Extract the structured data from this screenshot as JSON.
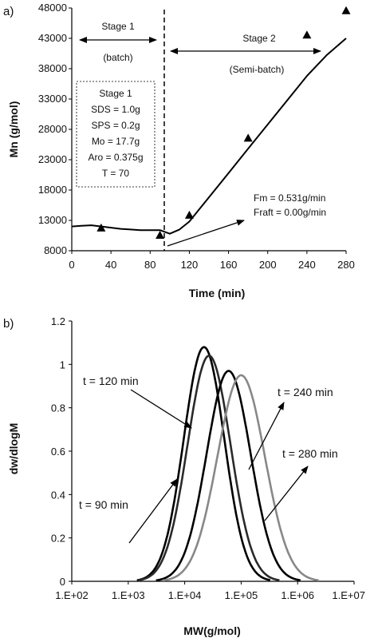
{
  "chart_data": [
    {
      "panel": "a)",
      "type": "line",
      "xlabel": "Time (min)",
      "ylabel": "Mn (g/mol)",
      "xlim": [
        0,
        280
      ],
      "ylim": [
        8000,
        48000
      ],
      "x_ticks": [
        "0",
        "40",
        "80",
        "120",
        "160",
        "200",
        "240",
        "280"
      ],
      "y_ticks": [
        "8000",
        "13000",
        "18000",
        "23000",
        "28000",
        "33000",
        "38000",
        "43000",
        "48000"
      ],
      "series": [
        {
          "style": "line",
          "x": [
            0,
            10,
            20,
            30,
            40,
            50,
            60,
            70,
            80,
            90,
            100,
            110,
            120,
            130,
            140,
            160,
            180,
            200,
            220,
            240,
            260,
            280
          ],
          "y": [
            12000,
            12100,
            12200,
            12000,
            11800,
            11600,
            11500,
            11400,
            11400,
            11400,
            10800,
            11500,
            12800,
            14800,
            16800,
            20800,
            24800,
            28800,
            32800,
            36800,
            40200,
            43000
          ]
        },
        {
          "style": "markers",
          "marker": "triangle",
          "x": [
            30,
            90,
            120,
            180,
            240,
            280
          ],
          "y": [
            11700,
            10500,
            13800,
            26500,
            43500,
            47500
          ]
        }
      ],
      "stage_divider_x": 90,
      "annotations": {
        "stage1_title": "Stage 1",
        "stage1_mode": "(batch)",
        "stage2_title": "Stage 2",
        "stage2_mode": "(Semi-batch)",
        "recipe_title": "Stage 1",
        "recipe_lines": [
          "SDS = 1.0g",
          "SPS = 0.2g",
          "Mo = 17.7g",
          "Aro = 0.375g",
          "T = 70"
        ],
        "feed_lines": [
          "Fm = 0.531g/min",
          "Fraft = 0.00g/min"
        ]
      }
    },
    {
      "panel": "b)",
      "type": "line",
      "xlabel": "MW(g/mol)",
      "ylabel": "dw/dlogM",
      "x_scale": "log",
      "xlim": [
        100,
        10000000
      ],
      "ylim": [
        0,
        1.2
      ],
      "x_ticks": [
        "1.E+02",
        "1.E+03",
        "1.E+04",
        "1.E+05",
        "1.E+06",
        "1.E+07"
      ],
      "y_ticks": [
        "0",
        "0.2",
        "0.4",
        "0.6",
        "0.8",
        "1",
        "1.2"
      ],
      "series": [
        {
          "label": "t = 90 min",
          "peak_mw": 22000,
          "peak": 1.08,
          "sigma": 0.36,
          "color": "#000000"
        },
        {
          "label": "t = 120 min",
          "peak_mw": 27000,
          "peak": 1.04,
          "sigma": 0.38,
          "color": "#2a2a2a"
        },
        {
          "label": "t = 240 min",
          "peak_mw": 60000,
          "peak": 0.97,
          "sigma": 0.39,
          "color": "#000000"
        },
        {
          "label": "t = 280 min",
          "peak_mw": 100000,
          "peak": 0.95,
          "sigma": 0.42,
          "color": "#888888"
        }
      ]
    }
  ]
}
